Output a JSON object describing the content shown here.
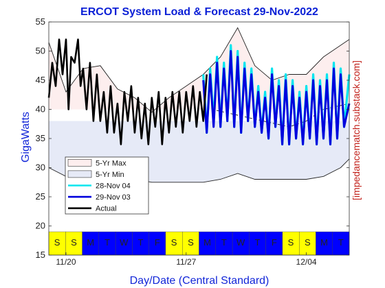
{
  "chart_data": {
    "type": "line",
    "title": "ERCOT System Load & Forecast 29-Nov-2022",
    "xlabel": "Day/Date (Central Standard)",
    "ylabel": "GigaWatts",
    "watermark": "[impedancematch.substack.com]",
    "ylim": [
      15,
      55
    ],
    "yticks": [
      15,
      20,
      25,
      30,
      35,
      40,
      45,
      50,
      55
    ],
    "x_range_days": [
      0,
      17.5
    ],
    "x_date_ticks": [
      {
        "label": "11/20",
        "day": 1
      },
      {
        "label": "11/27",
        "day": 8
      },
      {
        "label": "12/04",
        "day": 15
      }
    ],
    "day_band": {
      "letters": [
        "S",
        "S",
        "M",
        "T",
        "W",
        "T",
        "F",
        "S",
        "S",
        "M",
        "T",
        "W",
        "T",
        "F",
        "S",
        "S",
        "M",
        "T"
      ],
      "weekend_color": "#ffff00",
      "weekday_color": "#0000ff",
      "weekend": [
        true,
        true,
        false,
        false,
        false,
        false,
        false,
        true,
        true,
        false,
        false,
        false,
        false,
        false,
        true,
        true,
        false,
        false
      ],
      "y_from": 15,
      "y_to": 19
    },
    "colors": {
      "max_band": "#fdeeee",
      "min_band": "#e6eaf7",
      "actual": "#000000",
      "forecast_28nov": "#00e5ee",
      "forecast_29nov": "#0000dd"
    },
    "legend": {
      "placement": "lower-left",
      "entries": [
        "5-Yr Max",
        "5-Yr Min",
        "28-Nov 04",
        "29-Nov 03",
        "Actual"
      ]
    },
    "series": [
      {
        "name": "5-Yr Max",
        "x": [
          0,
          1,
          2,
          3,
          4,
          5,
          6,
          7,
          8,
          9,
          10,
          11,
          12,
          13,
          14,
          15,
          16,
          17,
          17.5
        ],
        "values": [
          51.5,
          43,
          47,
          47.5,
          43.5,
          42,
          39.5,
          42,
          44,
          46,
          49,
          54,
          47.5,
          45,
          46,
          46,
          49,
          51,
          52
        ]
      },
      {
        "name": "5-Yr Min",
        "x": [
          0,
          1,
          2,
          3,
          4,
          5,
          6,
          7,
          8,
          9,
          10,
          11,
          12,
          13,
          14,
          15,
          16,
          17,
          17.5
        ],
        "values": [
          30,
          28.5,
          29,
          28.5,
          28,
          28,
          27.5,
          27.5,
          27.5,
          27.5,
          28,
          29,
          28,
          28,
          28,
          28,
          28.5,
          30,
          31.5
        ]
      },
      {
        "name": "Actual",
        "x": [
          0,
          0.2,
          0.4,
          0.6,
          0.8,
          1.0,
          1.15,
          1.3,
          1.5,
          1.7,
          1.85,
          2.0,
          2.2,
          2.4,
          2.6,
          2.8,
          3.0,
          3.2,
          3.4,
          3.6,
          3.8,
          4.0,
          4.2,
          4.4,
          4.6,
          4.8,
          5.0,
          5.2,
          5.4,
          5.6,
          5.8,
          6.0,
          6.2,
          6.4,
          6.6,
          6.8,
          7.0,
          7.2,
          7.4,
          7.6,
          7.8,
          8.0,
          8.2,
          8.4,
          8.6,
          8.8,
          9.0,
          9.2
        ],
        "values": [
          42,
          48,
          44,
          52,
          46,
          52,
          40,
          49,
          48,
          52,
          44,
          47,
          40,
          48,
          38,
          46,
          38,
          43,
          36,
          44,
          36,
          41,
          34,
          43,
          38,
          44,
          36,
          42,
          35,
          41,
          34,
          42,
          37,
          43,
          34,
          42,
          36,
          43,
          37,
          43,
          36,
          43,
          38,
          44,
          37,
          43,
          38,
          46
        ]
      },
      {
        "name": "28-Nov 04",
        "x": [
          9.0,
          9.2,
          9.4,
          9.6,
          9.8,
          10.0,
          10.2,
          10.4,
          10.6,
          10.8,
          11.0,
          11.2,
          11.4,
          11.6,
          11.8,
          12.0,
          12.2,
          12.4,
          12.6,
          12.8,
          13.0,
          13.2,
          13.4,
          13.6,
          13.8,
          14.0,
          14.2,
          14.4,
          14.6,
          14.8,
          15.0,
          15.2,
          15.4,
          15.6,
          15.8,
          16.0,
          16.2,
          16.4,
          16.6,
          16.8,
          17.0,
          17.2,
          17.5
        ],
        "values": [
          46,
          36,
          47,
          38,
          49,
          37,
          48,
          38,
          51,
          37,
          50,
          36,
          48,
          38,
          47,
          37,
          44,
          36,
          43,
          35,
          47,
          37,
          45,
          34,
          46,
          34,
          45,
          35,
          43,
          34,
          44,
          35,
          46,
          34,
          45,
          35,
          46,
          34,
          48,
          35,
          47,
          37,
          46
        ]
      },
      {
        "name": "29-Nov 03",
        "x": [
          9.0,
          9.2,
          9.4,
          9.6,
          9.8,
          10.0,
          10.2,
          10.4,
          10.6,
          10.8,
          11.0,
          11.2,
          11.4,
          11.6,
          11.8,
          12.0,
          12.2,
          12.4,
          12.6,
          12.8,
          13.0,
          13.2,
          13.4,
          13.6,
          13.8,
          14.0,
          14.2,
          14.4,
          14.6,
          14.8,
          15.0,
          15.2,
          15.4,
          15.6,
          15.8,
          16.0,
          16.2,
          16.4,
          16.6,
          16.8,
          17.0,
          17.2,
          17.5
        ],
        "values": [
          45,
          36,
          46,
          37,
          48,
          37,
          47,
          38,
          50,
          37,
          49,
          36,
          47,
          38,
          46,
          37,
          43,
          36,
          42,
          35,
          46,
          37,
          44,
          34,
          45,
          34,
          44,
          35,
          42,
          34,
          43,
          35,
          45,
          34,
          44,
          35,
          45,
          34,
          47,
          35,
          46,
          37,
          41
        ]
      }
    ],
    "dash_line_projection": {
      "x": [
        9.5,
        11,
        12.5,
        14,
        15,
        16,
        17.5
      ],
      "values": [
        40,
        39,
        38,
        37,
        38,
        40,
        41
      ]
    }
  }
}
